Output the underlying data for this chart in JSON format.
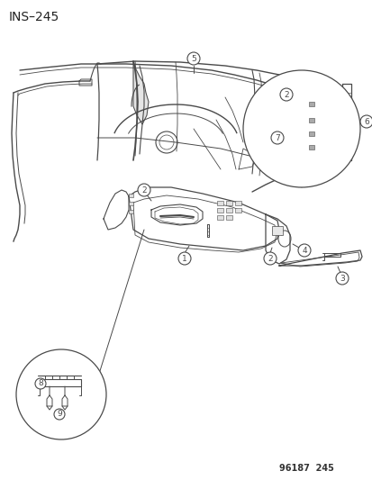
{
  "title": "INS–245",
  "footer": "96187  245",
  "background_color": "#ffffff",
  "line_color": "#4a4a4a",
  "figsize": [
    4.14,
    5.33
  ],
  "dpi": 100
}
